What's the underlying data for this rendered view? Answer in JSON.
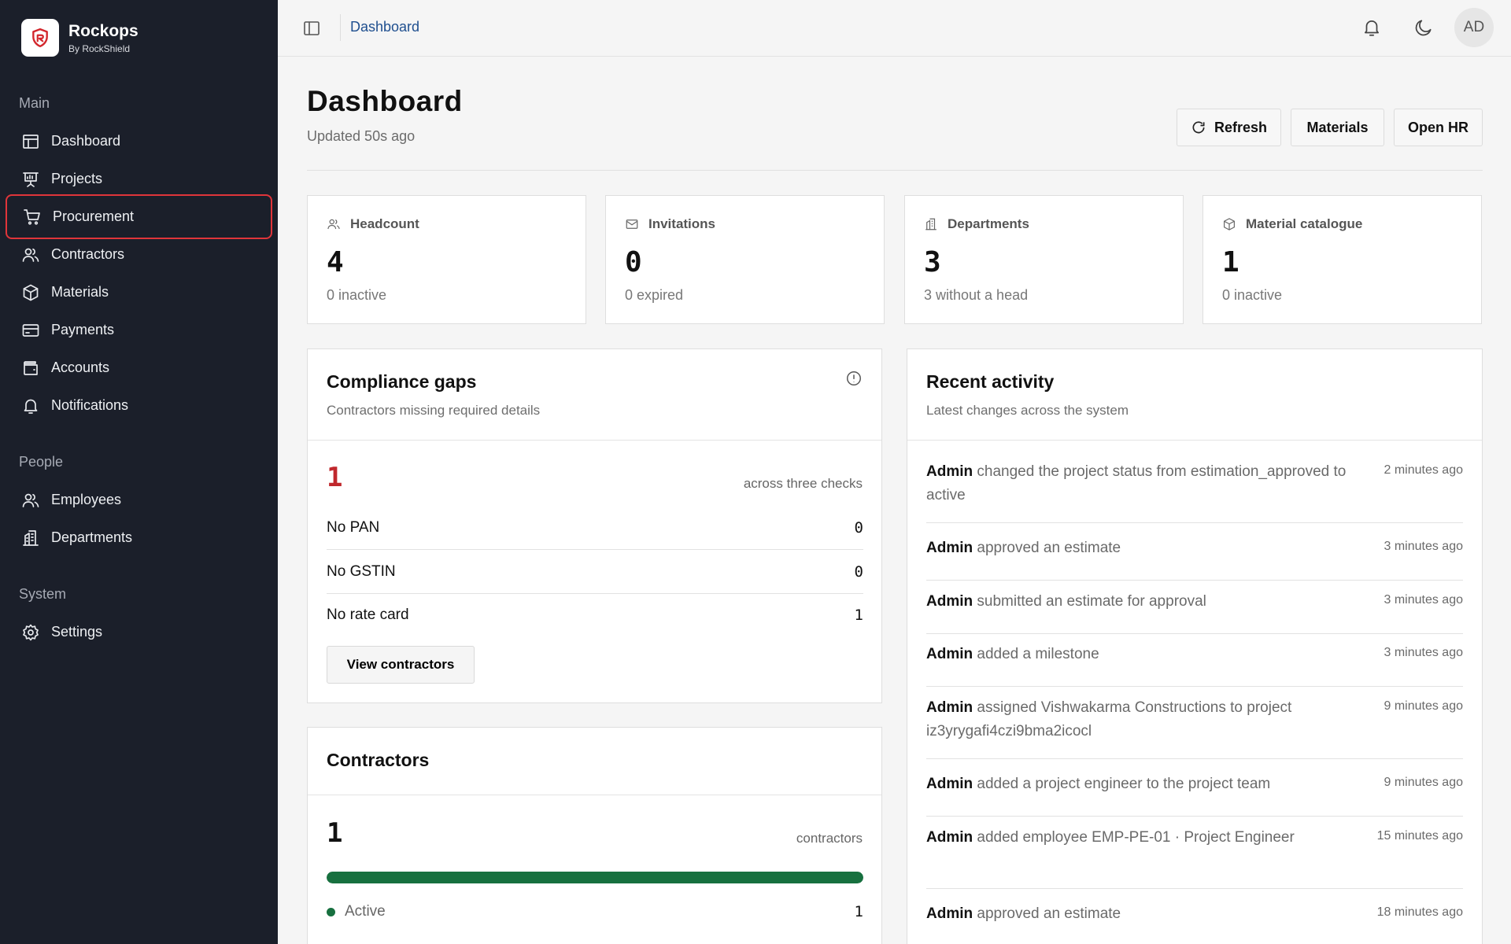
{
  "brand": {
    "name": "Rockops",
    "sub": "By RockShield"
  },
  "sidebar": {
    "sections": [
      {
        "label": "Main"
      },
      {
        "label": "People"
      },
      {
        "label": "System"
      }
    ],
    "items": [
      {
        "label": "Dashboard",
        "icon": "layout-icon"
      },
      {
        "label": "Projects",
        "icon": "presentation-icon"
      },
      {
        "label": "Procurement",
        "icon": "cart-icon"
      },
      {
        "label": "Contractors",
        "icon": "users-icon"
      },
      {
        "label": "Materials",
        "icon": "box-icon"
      },
      {
        "label": "Payments",
        "icon": "card-icon"
      },
      {
        "label": "Accounts",
        "icon": "wallet-icon"
      },
      {
        "label": "Notifications",
        "icon": "bell-icon"
      },
      {
        "label": "Employees",
        "icon": "users-icon"
      },
      {
        "label": "Departments",
        "icon": "building-icon"
      },
      {
        "label": "Settings",
        "icon": "gear-icon"
      }
    ]
  },
  "topbar": {
    "breadcrumb": "Dashboard",
    "avatar": "AD"
  },
  "header": {
    "title": "Dashboard",
    "updated": "Updated 50s ago",
    "buttons": {
      "refresh": "Refresh",
      "materials": "Materials",
      "open_hr": "Open HR"
    }
  },
  "stats": [
    {
      "label": "Headcount",
      "value": "4",
      "sub": "0 inactive",
      "icon": "users-icon"
    },
    {
      "label": "Invitations",
      "value": "0",
      "sub": "0 expired",
      "icon": "mail-icon"
    },
    {
      "label": "Departments",
      "value": "3",
      "sub": "3 without a head",
      "icon": "building-icon"
    },
    {
      "label": "Material catalogue",
      "value": "1",
      "sub": "0 inactive",
      "icon": "box-icon"
    }
  ],
  "compliance": {
    "title": "Compliance gaps",
    "subtitle": "Contractors missing required details",
    "total": "1",
    "total_note": "across three checks",
    "checks": [
      {
        "label": "No PAN",
        "value": "0"
      },
      {
        "label": "No GSTIN",
        "value": "0"
      },
      {
        "label": "No rate card",
        "value": "1"
      }
    ],
    "button": "View contractors",
    "accent": "#c0282d"
  },
  "contractors": {
    "title": "Contractors",
    "total": "1",
    "total_note": "contractors",
    "active_fraction": 1.0,
    "legend": [
      {
        "label": "Active",
        "value": "1",
        "color": "#17703f"
      }
    ]
  },
  "activity": {
    "title": "Recent activity",
    "subtitle": "Latest changes across the system",
    "items": [
      {
        "actor": "Admin",
        "text": "changed the project status from estimation_approved to active",
        "time": "2 minutes ago"
      },
      {
        "actor": "Admin",
        "text": "approved an estimate",
        "time": "3 minutes ago"
      },
      {
        "actor": "Admin",
        "text": "submitted an estimate for approval",
        "time": "3 minutes ago"
      },
      {
        "actor": "Admin",
        "text": "added a milestone",
        "time": "3 minutes ago"
      },
      {
        "actor": "Admin",
        "text": "assigned Vishwakarma Constructions to project iz3yrygafi4czi9bma2icocl",
        "time": "9 minutes ago"
      },
      {
        "actor": "Admin",
        "text": "added a project engineer to the project team",
        "time": "9 minutes ago"
      },
      {
        "actor": "Admin",
        "text": "added employee EMP-PE-01 · Project Engineer",
        "time": "15 minutes ago"
      },
      {
        "actor": "Admin",
        "text": "approved an estimate",
        "time": "18 minutes ago"
      }
    ]
  }
}
